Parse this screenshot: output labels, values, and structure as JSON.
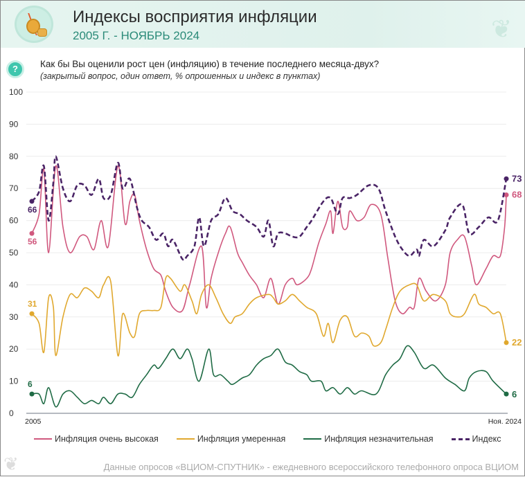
{
  "header": {
    "title": "Индексы восприятия инфляции",
    "subtitle": "2005 Г. - НОЯБРЬ 2024"
  },
  "question": {
    "text": "Как бы Вы оценили рост цен (инфляцию) в течение последнего месяца-двух?",
    "note": "(закрытый вопрос, один ответ, % опрошенных и индекс в пунктах)",
    "icon": "?"
  },
  "footer": {
    "source": "Данные опросов «ВЦИОМ-СПУТНИК» - ежедневного всероссийского телефонного опроса ВЦИОМ"
  },
  "chart_data": {
    "type": "line",
    "title": "Индексы восприятия инфляции",
    "xlabel": "",
    "ylabel": "",
    "ylim": [
      0,
      100
    ],
    "xlim": [
      2005,
      2024.85
    ],
    "grid": true,
    "legend_position": "bottom",
    "y_ticks": [
      "0",
      "10",
      "20",
      "30",
      "40",
      "50",
      "60",
      "70",
      "80",
      "90",
      "100"
    ],
    "x_tick_labels": {
      "start": "2005",
      "end": "Ноя. 2024"
    },
    "series": [
      {
        "name": "Инфляция очень высокая",
        "color": "#d0587e",
        "dash": false,
        "start_label": "56",
        "end_label": "68",
        "points": [
          [
            2005.0,
            56
          ],
          [
            2005.3,
            62
          ],
          [
            2005.5,
            76
          ],
          [
            2005.7,
            50
          ],
          [
            2006.0,
            77
          ],
          [
            2006.3,
            58
          ],
          [
            2006.6,
            50
          ],
          [
            2007.0,
            55
          ],
          [
            2007.3,
            55
          ],
          [
            2007.6,
            51
          ],
          [
            2007.9,
            60
          ],
          [
            2008.2,
            52
          ],
          [
            2008.6,
            77
          ],
          [
            2008.9,
            59
          ],
          [
            2009.1,
            66
          ],
          [
            2009.3,
            68
          ],
          [
            2009.5,
            60
          ],
          [
            2009.8,
            51
          ],
          [
            2010.1,
            45
          ],
          [
            2010.4,
            43
          ],
          [
            2010.6,
            38
          ],
          [
            2010.9,
            33
          ],
          [
            2011.3,
            32
          ],
          [
            2011.6,
            40
          ],
          [
            2012.1,
            52
          ],
          [
            2012.3,
            33
          ],
          [
            2012.5,
            42
          ],
          [
            2012.8,
            50
          ],
          [
            2013.1,
            56
          ],
          [
            2013.3,
            58
          ],
          [
            2013.6,
            50
          ],
          [
            2013.8,
            47
          ],
          [
            2014.1,
            43
          ],
          [
            2014.4,
            40
          ],
          [
            2014.7,
            36
          ],
          [
            2015.0,
            42
          ],
          [
            2015.3,
            34
          ],
          [
            2015.6,
            40
          ],
          [
            2015.9,
            42
          ],
          [
            2016.1,
            40
          ],
          [
            2016.5,
            42
          ],
          [
            2016.7,
            45
          ],
          [
            2017.0,
            53
          ],
          [
            2017.3,
            59
          ],
          [
            2017.5,
            63
          ],
          [
            2017.6,
            56
          ],
          [
            2017.8,
            66
          ],
          [
            2018.0,
            58
          ],
          [
            2018.2,
            58
          ],
          [
            2018.3,
            63
          ],
          [
            2018.6,
            60
          ],
          [
            2018.9,
            61
          ],
          [
            2019.2,
            65
          ],
          [
            2019.6,
            62
          ],
          [
            2019.9,
            48
          ],
          [
            2020.2,
            35
          ],
          [
            2020.5,
            31
          ],
          [
            2020.8,
            33
          ],
          [
            2021.0,
            33
          ],
          [
            2021.2,
            42
          ],
          [
            2021.5,
            38
          ],
          [
            2021.9,
            35
          ],
          [
            2022.3,
            40
          ],
          [
            2022.5,
            50
          ],
          [
            2022.8,
            54
          ],
          [
            2023.1,
            55
          ],
          [
            2023.4,
            46
          ],
          [
            2023.6,
            40
          ],
          [
            2024.0,
            45
          ],
          [
            2024.3,
            49
          ],
          [
            2024.6,
            49
          ],
          [
            2024.78,
            58
          ],
          [
            2024.85,
            68
          ]
        ]
      },
      {
        "name": "Инфляция умеренная",
        "color": "#e0a82e",
        "dash": false,
        "start_label": "31",
        "end_label": "22",
        "points": [
          [
            2005.0,
            31
          ],
          [
            2005.3,
            28
          ],
          [
            2005.5,
            19
          ],
          [
            2005.7,
            36
          ],
          [
            2005.9,
            33
          ],
          [
            2006.0,
            18
          ],
          [
            2006.3,
            30
          ],
          [
            2006.6,
            37
          ],
          [
            2006.9,
            36
          ],
          [
            2007.2,
            39
          ],
          [
            2007.5,
            38
          ],
          [
            2007.8,
            36
          ],
          [
            2008.0,
            40
          ],
          [
            2008.3,
            41
          ],
          [
            2008.6,
            18
          ],
          [
            2008.8,
            31
          ],
          [
            2009.1,
            25
          ],
          [
            2009.3,
            24
          ],
          [
            2009.5,
            31
          ],
          [
            2009.8,
            32
          ],
          [
            2010.1,
            32
          ],
          [
            2010.4,
            33
          ],
          [
            2010.6,
            42
          ],
          [
            2010.8,
            42
          ],
          [
            2011.2,
            38
          ],
          [
            2011.4,
            40
          ],
          [
            2011.7,
            35
          ],
          [
            2011.9,
            31
          ],
          [
            2012.1,
            37
          ],
          [
            2012.4,
            40
          ],
          [
            2012.7,
            36
          ],
          [
            2013.0,
            31
          ],
          [
            2013.3,
            28
          ],
          [
            2013.5,
            30
          ],
          [
            2013.8,
            31
          ],
          [
            2014.1,
            34
          ],
          [
            2014.4,
            36
          ],
          [
            2014.9,
            37
          ],
          [
            2015.1,
            36
          ],
          [
            2015.3,
            34
          ],
          [
            2015.6,
            35
          ],
          [
            2015.9,
            37
          ],
          [
            2016.2,
            35
          ],
          [
            2016.5,
            33
          ],
          [
            2016.9,
            31
          ],
          [
            2017.2,
            24
          ],
          [
            2017.4,
            28
          ],
          [
            2017.6,
            22
          ],
          [
            2017.9,
            29
          ],
          [
            2018.2,
            30
          ],
          [
            2018.5,
            24
          ],
          [
            2018.8,
            25
          ],
          [
            2019.1,
            24
          ],
          [
            2019.3,
            21
          ],
          [
            2019.6,
            22
          ],
          [
            2019.8,
            26
          ],
          [
            2020.1,
            33
          ],
          [
            2020.4,
            38
          ],
          [
            2020.8,
            40
          ],
          [
            2021.1,
            40
          ],
          [
            2021.4,
            35
          ],
          [
            2021.8,
            37
          ],
          [
            2022.3,
            35
          ],
          [
            2022.5,
            31
          ],
          [
            2022.8,
            30
          ],
          [
            2023.1,
            31
          ],
          [
            2023.5,
            37
          ],
          [
            2023.7,
            34
          ],
          [
            2024.0,
            33
          ],
          [
            2024.3,
            31
          ],
          [
            2024.6,
            31
          ],
          [
            2024.85,
            22
          ]
        ]
      },
      {
        "name": "Инфляция незначительная",
        "color": "#1f6b45",
        "dash": false,
        "start_label": "6",
        "end_label": "6",
        "points": [
          [
            2005.0,
            6
          ],
          [
            2005.3,
            6
          ],
          [
            2005.5,
            3
          ],
          [
            2005.7,
            8
          ],
          [
            2006.0,
            2
          ],
          [
            2006.3,
            6
          ],
          [
            2006.6,
            7
          ],
          [
            2006.9,
            5
          ],
          [
            2007.2,
            3
          ],
          [
            2007.5,
            4
          ],
          [
            2007.8,
            3
          ],
          [
            2008.0,
            5
          ],
          [
            2008.3,
            3
          ],
          [
            2008.6,
            6
          ],
          [
            2008.9,
            6
          ],
          [
            2009.2,
            5
          ],
          [
            2009.5,
            9
          ],
          [
            2009.8,
            12
          ],
          [
            2010.1,
            15
          ],
          [
            2010.3,
            14
          ],
          [
            2010.6,
            17
          ],
          [
            2010.9,
            20
          ],
          [
            2011.2,
            17
          ],
          [
            2011.5,
            20
          ],
          [
            2011.7,
            17
          ],
          [
            2012.0,
            10
          ],
          [
            2012.4,
            20
          ],
          [
            2012.6,
            12
          ],
          [
            2012.9,
            12
          ],
          [
            2013.2,
            10
          ],
          [
            2013.4,
            9
          ],
          [
            2013.8,
            11
          ],
          [
            2014.1,
            12
          ],
          [
            2014.4,
            15
          ],
          [
            2014.7,
            17
          ],
          [
            2015.0,
            18
          ],
          [
            2015.3,
            20
          ],
          [
            2015.6,
            16
          ],
          [
            2015.9,
            15
          ],
          [
            2016.2,
            13
          ],
          [
            2016.5,
            12
          ],
          [
            2016.7,
            10
          ],
          [
            2017.1,
            10
          ],
          [
            2017.3,
            7
          ],
          [
            2017.6,
            8
          ],
          [
            2017.9,
            6
          ],
          [
            2018.2,
            8
          ],
          [
            2018.5,
            6
          ],
          [
            2018.8,
            7
          ],
          [
            2019.4,
            6
          ],
          [
            2019.8,
            12
          ],
          [
            2020.1,
            15
          ],
          [
            2020.4,
            17
          ],
          [
            2020.7,
            21
          ],
          [
            2021.0,
            19
          ],
          [
            2021.4,
            14
          ],
          [
            2021.8,
            15
          ],
          [
            2022.3,
            11
          ],
          [
            2022.7,
            9
          ],
          [
            2023.1,
            7
          ],
          [
            2023.3,
            11
          ],
          [
            2023.6,
            13
          ],
          [
            2024.0,
            13
          ],
          [
            2024.3,
            10
          ],
          [
            2024.85,
            6
          ]
        ]
      },
      {
        "name": "Индекс",
        "color": "#4a2466",
        "dash": true,
        "start_label": "66",
        "end_label": "73",
        "points": [
          [
            2005.0,
            66
          ],
          [
            2005.3,
            69
          ],
          [
            2005.5,
            77
          ],
          [
            2005.7,
            60
          ],
          [
            2005.9,
            72
          ],
          [
            2006.0,
            80
          ],
          [
            2006.3,
            70
          ],
          [
            2006.6,
            66
          ],
          [
            2006.9,
            71
          ],
          [
            2007.2,
            71
          ],
          [
            2007.5,
            68
          ],
          [
            2007.8,
            73
          ],
          [
            2008.0,
            67
          ],
          [
            2008.3,
            68
          ],
          [
            2008.6,
            78
          ],
          [
            2008.8,
            70
          ],
          [
            2009.1,
            73
          ],
          [
            2009.4,
            64
          ],
          [
            2009.6,
            60
          ],
          [
            2009.9,
            58
          ],
          [
            2010.2,
            54
          ],
          [
            2010.5,
            56
          ],
          [
            2010.7,
            52
          ],
          [
            2010.9,
            54
          ],
          [
            2011.3,
            48
          ],
          [
            2011.5,
            49
          ],
          [
            2011.8,
            52
          ],
          [
            2012.0,
            61
          ],
          [
            2012.2,
            52
          ],
          [
            2012.5,
            60
          ],
          [
            2012.8,
            62
          ],
          [
            2013.1,
            67
          ],
          [
            2013.4,
            63
          ],
          [
            2013.7,
            62
          ],
          [
            2014.0,
            60
          ],
          [
            2014.4,
            58
          ],
          [
            2014.7,
            55
          ],
          [
            2014.9,
            60
          ],
          [
            2015.1,
            52
          ],
          [
            2015.3,
            56
          ],
          [
            2015.6,
            56
          ],
          [
            2015.9,
            55
          ],
          [
            2016.2,
            55
          ],
          [
            2016.5,
            58
          ],
          [
            2016.7,
            60
          ],
          [
            2017.2,
            66
          ],
          [
            2017.5,
            67
          ],
          [
            2017.8,
            62
          ],
          [
            2018.0,
            67
          ],
          [
            2018.3,
            67
          ],
          [
            2018.6,
            68
          ],
          [
            2019.1,
            71
          ],
          [
            2019.5,
            70
          ],
          [
            2019.8,
            63
          ],
          [
            2020.2,
            55
          ],
          [
            2020.5,
            51
          ],
          [
            2020.8,
            49
          ],
          [
            2021.1,
            51
          ],
          [
            2021.2,
            49
          ],
          [
            2021.4,
            54
          ],
          [
            2021.8,
            52
          ],
          [
            2022.3,
            57
          ],
          [
            2022.5,
            61
          ],
          [
            2023.0,
            65
          ],
          [
            2023.3,
            56
          ],
          [
            2023.7,
            58
          ],
          [
            2024.1,
            61
          ],
          [
            2024.5,
            60
          ],
          [
            2024.85,
            73
          ]
        ]
      }
    ]
  }
}
